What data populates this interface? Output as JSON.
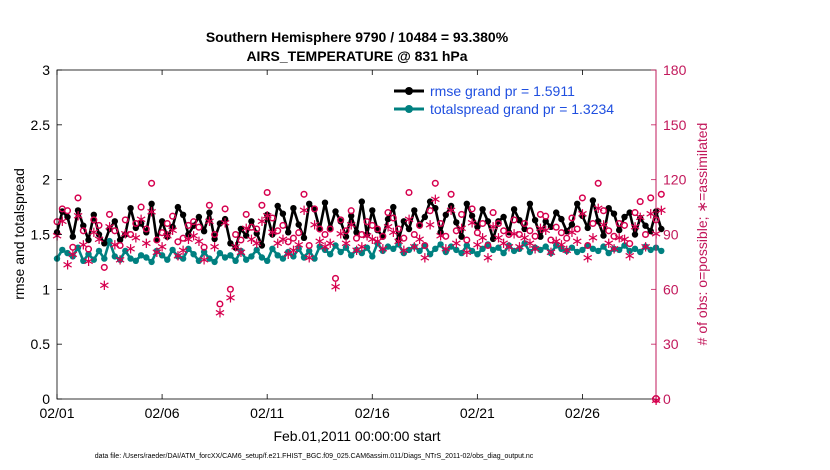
{
  "chart_data": {
    "type": "line",
    "title_line1": "Southern Hemisphere 9790 / 10484 = 93.380%",
    "title_line2": "AIRS_TEMPERATURE @ 831 hPa",
    "xlabel": "Feb.01,2011 00:00:00 start",
    "ylabel_left": "rmse and totalspread",
    "ylabel_right": "# of obs: o=possible; ∗=assimilated",
    "footer": "data file: /Users/raeder/DAI/ATM_forcXX/CAM6_setup/f.e21.FHIST_BGC.f09_025.CAM6assim.011/Diags_NTrS_2011-02/obs_diag_output.nc",
    "xlim": [
      1,
      29.5
    ],
    "ylim_left": [
      0,
      3
    ],
    "ylim_right": [
      0,
      180
    ],
    "x_ticks": [
      1,
      6,
      11,
      16,
      21,
      26
    ],
    "x_tick_labels": [
      "02/01",
      "02/06",
      "02/11",
      "02/16",
      "02/21",
      "02/26"
    ],
    "y_left_ticks": [
      0,
      0.5,
      1,
      1.5,
      2,
      2.5,
      3
    ],
    "y_left_tick_labels": [
      "0",
      "0.5",
      "1",
      "1.5",
      "2",
      "2.5",
      "3"
    ],
    "y_right_ticks": [
      0,
      30,
      60,
      90,
      120,
      150,
      180
    ],
    "y_right_tick_labels": [
      "0",
      "30",
      "60",
      "90",
      "120",
      "150",
      "180"
    ],
    "colors": {
      "rmse": "#000000",
      "spread": "#008080",
      "obs": "#d6004e",
      "axis_right": "#c2185b",
      "legend_text": "#1f4fe0"
    },
    "legend": [
      {
        "key": "rmse",
        "label": "rmse grand pr = 1.5911"
      },
      {
        "key": "spread",
        "label": "totalspread grand pr = 1.3234"
      }
    ],
    "start_day": 1.0,
    "step_days": 0.25,
    "rmse": [
      1.52,
      1.71,
      1.66,
      1.48,
      1.72,
      1.58,
      1.45,
      1.68,
      1.5,
      1.42,
      1.55,
      1.62,
      1.45,
      1.5,
      1.74,
      1.56,
      1.6,
      1.52,
      1.78,
      1.45,
      1.62,
      1.48,
      1.57,
      1.75,
      1.68,
      1.5,
      1.58,
      1.66,
      1.53,
      1.7,
      1.46,
      1.6,
      1.64,
      1.42,
      1.38,
      1.55,
      1.49,
      1.62,
      1.51,
      1.4,
      1.68,
      1.5,
      1.76,
      1.69,
      1.52,
      1.74,
      1.59,
      1.47,
      1.78,
      1.73,
      1.55,
      1.79,
      1.56,
      1.71,
      1.62,
      1.48,
      1.67,
      1.52,
      1.8,
      1.5,
      1.72,
      1.54,
      1.48,
      1.64,
      1.75,
      1.45,
      1.62,
      1.55,
      1.72,
      1.59,
      1.66,
      1.8,
      1.74,
      1.52,
      1.68,
      1.76,
      1.61,
      1.48,
      1.78,
      1.67,
      1.57,
      1.73,
      1.62,
      1.46,
      1.62,
      1.66,
      1.52,
      1.73,
      1.63,
      1.55,
      1.78,
      1.63,
      1.48,
      1.62,
      1.57,
      1.7,
      1.64,
      1.53,
      1.59,
      1.78,
      1.67,
      1.56,
      1.81,
      1.62,
      1.49,
      1.74,
      1.69,
      1.54,
      1.66,
      1.7,
      1.5,
      1.65,
      1.58,
      1.53,
      1.71,
      1.55
    ],
    "spread": [
      1.28,
      1.36,
      1.33,
      1.3,
      1.38,
      1.26,
      1.32,
      1.27,
      1.35,
      1.28,
      1.44,
      1.3,
      1.27,
      1.35,
      1.28,
      1.26,
      1.31,
      1.29,
      1.25,
      1.35,
      1.31,
      1.27,
      1.36,
      1.3,
      1.28,
      1.37,
      1.32,
      1.26,
      1.34,
      1.28,
      1.25,
      1.33,
      1.29,
      1.31,
      1.26,
      1.35,
      1.27,
      1.3,
      1.36,
      1.29,
      1.26,
      1.37,
      1.31,
      1.28,
      1.34,
      1.3,
      1.37,
      1.29,
      1.35,
      1.28,
      1.39,
      1.36,
      1.32,
      1.4,
      1.34,
      1.38,
      1.31,
      1.36,
      1.33,
      1.38,
      1.3,
      1.42,
      1.35,
      1.39,
      1.37,
      1.41,
      1.33,
      1.36,
      1.39,
      1.35,
      1.4,
      1.32,
      1.37,
      1.41,
      1.34,
      1.39,
      1.36,
      1.33,
      1.4,
      1.35,
      1.32,
      1.37,
      1.41,
      1.36,
      1.38,
      1.33,
      1.4,
      1.35,
      1.37,
      1.42,
      1.34,
      1.38,
      1.36,
      1.39,
      1.33,
      1.4,
      1.37,
      1.35,
      1.38,
      1.34,
      1.36,
      1.4,
      1.37,
      1.35,
      1.39,
      1.33,
      1.37,
      1.36,
      1.4,
      1.35,
      1.37,
      1.34,
      1.39,
      1.36,
      1.38,
      1.35
    ],
    "obs_possible": [
      97,
      104,
      103,
      83,
      110,
      92,
      82,
      98,
      95,
      72,
      101,
      92,
      84,
      98,
      90,
      96,
      105,
      93,
      118,
      87,
      91,
      96,
      100,
      86,
      88,
      95,
      97,
      94,
      83,
      106,
      90,
      52,
      104,
      60,
      90,
      87,
      101,
      94,
      93,
      106,
      113,
      99,
      92,
      95,
      86,
      88,
      91,
      112,
      84,
      104,
      93,
      90,
      93,
      66,
      98,
      92,
      103,
      88,
      90,
      97,
      95,
      93,
      89,
      102,
      99,
      93,
      88,
      113,
      90,
      95,
      84,
      103,
      118,
      96,
      89,
      112,
      92,
      101,
      87,
      104,
      91,
      96,
      84,
      102,
      96,
      92,
      90,
      98,
      90,
      96,
      92,
      89,
      101,
      100,
      87,
      94,
      91,
      88,
      99,
      93,
      110,
      84,
      96,
      118,
      103,
      92,
      89,
      96,
      95,
      85,
      102,
      108,
      90,
      110,
      98,
      112
    ],
    "obs_assimilated": [
      90,
      98,
      74,
      80,
      101,
      85,
      76,
      92,
      88,
      63,
      95,
      85,
      77,
      91,
      83,
      89,
      99,
      86,
      103,
      81,
      84,
      90,
      93,
      79,
      82,
      88,
      90,
      87,
      77,
      98,
      84,
      48,
      97,
      56,
      84,
      81,
      94,
      88,
      86,
      98,
      101,
      92,
      86,
      88,
      80,
      82,
      85,
      104,
      78,
      96,
      87,
      84,
      86,
      62,
      91,
      86,
      96,
      82,
      84,
      90,
      88,
      87,
      83,
      95,
      92,
      87,
      82,
      99,
      84,
      88,
      78,
      96,
      110,
      90,
      83,
      104,
      86,
      94,
      81,
      97,
      85,
      89,
      78,
      95,
      89,
      86,
      84,
      91,
      84,
      89,
      86,
      83,
      94,
      93,
      81,
      87,
      85,
      82,
      92,
      87,
      102,
      78,
      89,
      105,
      96,
      86,
      83,
      89,
      88,
      79,
      95,
      100,
      84,
      102,
      91,
      104
    ],
    "right_axis_end_marker": {
      "x": 29.5,
      "possible": 0,
      "assimilated": 0
    }
  }
}
